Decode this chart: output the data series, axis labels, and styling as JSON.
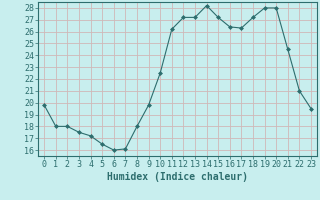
{
  "x": [
    0,
    1,
    2,
    3,
    4,
    5,
    6,
    7,
    8,
    9,
    10,
    11,
    12,
    13,
    14,
    15,
    16,
    17,
    18,
    19,
    20,
    21,
    22,
    23
  ],
  "y": [
    19.8,
    18.0,
    18.0,
    17.5,
    17.2,
    16.5,
    16.0,
    16.1,
    18.0,
    19.8,
    22.5,
    26.2,
    27.2,
    27.2,
    28.2,
    27.2,
    26.4,
    26.3,
    27.2,
    28.0,
    28.0,
    24.5,
    21.0,
    19.5
  ],
  "xlabel": "Humidex (Indice chaleur)",
  "xlim": [
    -0.5,
    23.5
  ],
  "ylim": [
    15.5,
    28.5
  ],
  "yticks": [
    16,
    17,
    18,
    19,
    20,
    21,
    22,
    23,
    24,
    25,
    26,
    27,
    28
  ],
  "xticks": [
    0,
    1,
    2,
    3,
    4,
    5,
    6,
    7,
    8,
    9,
    10,
    11,
    12,
    13,
    14,
    15,
    16,
    17,
    18,
    19,
    20,
    21,
    22,
    23
  ],
  "line_color": "#2d6e6e",
  "marker": "D",
  "marker_size": 2,
  "bg_color": "#c8eeee",
  "grid_color": "#d0b8b8",
  "tick_label_fontsize": 6,
  "xlabel_fontsize": 7
}
